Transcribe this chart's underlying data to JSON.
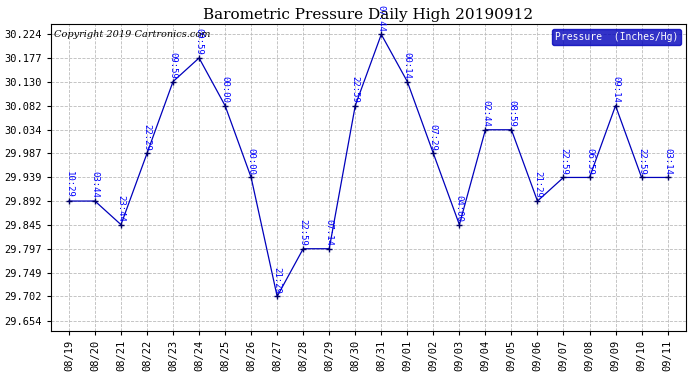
{
  "title": "Barometric Pressure Daily High 20190912",
  "copyright": "Copyright 2019 Cartronics.com",
  "legend_label": "Pressure  (Inches/Hg)",
  "ylim_low": 29.634,
  "ylim_high": 30.244,
  "yticks": [
    29.654,
    29.702,
    29.749,
    29.797,
    29.845,
    29.892,
    29.939,
    29.987,
    30.034,
    30.082,
    30.13,
    30.177,
    30.224
  ],
  "dates": [
    "08/19",
    "08/20",
    "08/21",
    "08/22",
    "08/23",
    "08/24",
    "08/25",
    "08/26",
    "08/27",
    "08/28",
    "08/29",
    "08/30",
    "08/31",
    "09/01",
    "09/02",
    "09/03",
    "09/04",
    "09/05",
    "09/06",
    "09/07",
    "09/08",
    "09/09",
    "09/10",
    "09/11"
  ],
  "values": [
    29.892,
    29.892,
    29.845,
    29.987,
    30.13,
    30.177,
    30.082,
    29.939,
    29.702,
    29.797,
    29.797,
    30.082,
    30.224,
    30.13,
    29.987,
    29.845,
    30.034,
    30.034,
    29.892,
    29.939,
    29.939,
    30.082,
    29.939,
    29.939
  ],
  "labels": [
    "10:29",
    "03:44",
    "23:44",
    "22:29",
    "09:59",
    "09:59",
    "00:00",
    "00:00",
    "21:29",
    "22:59",
    "07:14",
    "22:59",
    "07:44",
    "00:14",
    "07:29",
    "04:00",
    "02:44",
    "08:59",
    "21:29",
    "22:59",
    "06:59",
    "09:14",
    "22:59",
    "03:14"
  ],
  "line_color": "#0000bb",
  "marker_color": "#000066",
  "label_color": "#0000ff",
  "bg_color": "#ffffff",
  "grid_color": "#bbbbbb",
  "legend_bg": "#0000bb",
  "legend_text_color": "#ffffff",
  "title_color": "#000000",
  "title_fontsize": 11,
  "label_fontsize": 6.5,
  "tick_fontsize": 7.5,
  "copyright_fontsize": 7,
  "border_color": "#000000"
}
